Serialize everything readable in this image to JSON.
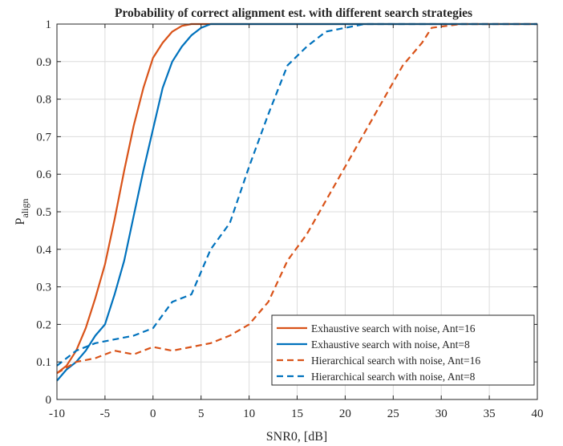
{
  "chart_data": {
    "type": "line",
    "title": "Probability of correct alignment est. with different search strategies",
    "xlabel": "SNR0, [dB]",
    "ylabel": "P",
    "ylabel_subscript": "align",
    "xlim": [
      -10,
      40
    ],
    "ylim": [
      0,
      1
    ],
    "xticks": [
      "-10",
      "-5",
      "0",
      "5",
      "10",
      "15",
      "20",
      "25",
      "30",
      "35",
      "40"
    ],
    "yticks": [
      "0",
      "0.1",
      "0.2",
      "0.3",
      "0.4",
      "0.5",
      "0.6",
      "0.7",
      "0.8",
      "0.9",
      "1"
    ],
    "grid": true,
    "legend_position": "bottom-right",
    "series": [
      {
        "name": "Exhaustive search with noise, Ant=16",
        "color": "#D95319",
        "style": "solid",
        "points": [
          [
            -10,
            0.07
          ],
          [
            -9,
            0.09
          ],
          [
            -8,
            0.13
          ],
          [
            -7,
            0.19
          ],
          [
            -6,
            0.27
          ],
          [
            -5,
            0.36
          ],
          [
            -4,
            0.48
          ],
          [
            -3,
            0.61
          ],
          [
            -2,
            0.73
          ],
          [
            -1,
            0.83
          ],
          [
            0,
            0.91
          ],
          [
            1,
            0.95
          ],
          [
            2,
            0.98
          ],
          [
            3,
            0.995
          ],
          [
            4,
            1.0
          ],
          [
            40,
            1.0
          ]
        ]
      },
      {
        "name": "Exhaustive search with noise, Ant=8",
        "color": "#0072BD",
        "style": "solid",
        "points": [
          [
            -10,
            0.05
          ],
          [
            -9,
            0.08
          ],
          [
            -8,
            0.1
          ],
          [
            -7,
            0.13
          ],
          [
            -6,
            0.17
          ],
          [
            -5,
            0.2
          ],
          [
            -4,
            0.28
          ],
          [
            -3,
            0.37
          ],
          [
            -2,
            0.49
          ],
          [
            -1,
            0.61
          ],
          [
            0,
            0.72
          ],
          [
            1,
            0.83
          ],
          [
            2,
            0.9
          ],
          [
            3,
            0.94
          ],
          [
            4,
            0.97
          ],
          [
            5,
            0.99
          ],
          [
            6,
            1.0
          ],
          [
            40,
            1.0
          ]
        ]
      },
      {
        "name": "Hierarchical search with noise, Ant=16",
        "color": "#D95319",
        "style": "dashed",
        "points": [
          [
            -10,
            0.07
          ],
          [
            -8,
            0.1
          ],
          [
            -6,
            0.11
          ],
          [
            -4,
            0.13
          ],
          [
            -2,
            0.12
          ],
          [
            0,
            0.14
          ],
          [
            2,
            0.13
          ],
          [
            4,
            0.14
          ],
          [
            6,
            0.15
          ],
          [
            8,
            0.17
          ],
          [
            10,
            0.2
          ],
          [
            12,
            0.26
          ],
          [
            14,
            0.37
          ],
          [
            16,
            0.44
          ],
          [
            18,
            0.53
          ],
          [
            20,
            0.62
          ],
          [
            22,
            0.71
          ],
          [
            24,
            0.8
          ],
          [
            26,
            0.89
          ],
          [
            28,
            0.95
          ],
          [
            29,
            0.99
          ],
          [
            32,
            1.0
          ],
          [
            40,
            1.0
          ]
        ]
      },
      {
        "name": "Hierarchical search with noise, Ant=8",
        "color": "#0072BD",
        "style": "dashed",
        "points": [
          [
            -10,
            0.09
          ],
          [
            -8,
            0.13
          ],
          [
            -6,
            0.15
          ],
          [
            -4,
            0.16
          ],
          [
            -2,
            0.17
          ],
          [
            0,
            0.19
          ],
          [
            2,
            0.26
          ],
          [
            4,
            0.28
          ],
          [
            6,
            0.4
          ],
          [
            8,
            0.47
          ],
          [
            10,
            0.62
          ],
          [
            12,
            0.76
          ],
          [
            14,
            0.89
          ],
          [
            16,
            0.94
          ],
          [
            18,
            0.98
          ],
          [
            20,
            0.99
          ],
          [
            22,
            1.0
          ],
          [
            40,
            1.0
          ]
        ]
      }
    ]
  }
}
